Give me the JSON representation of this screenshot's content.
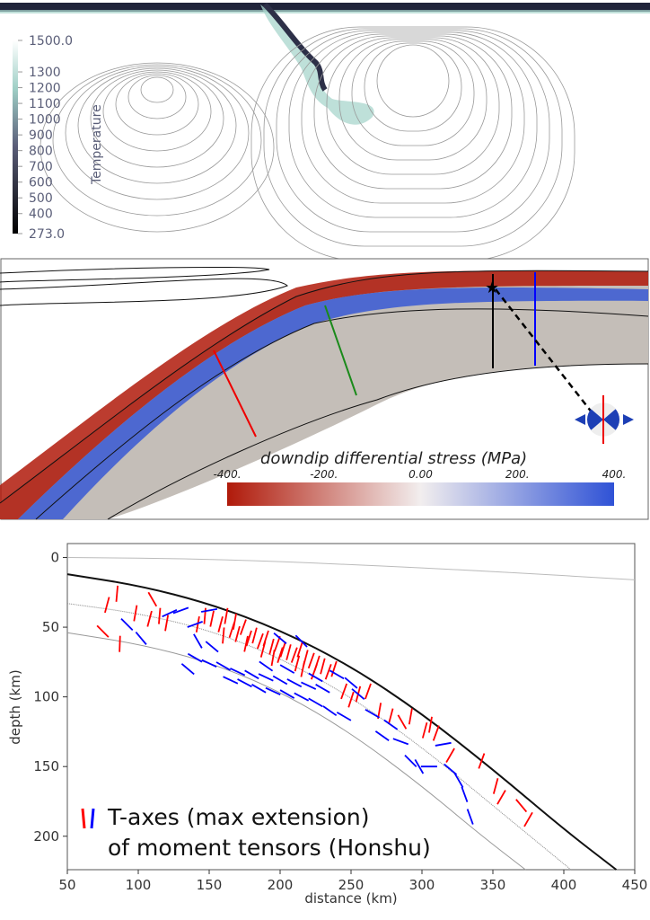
{
  "panel_temperature": {
    "colorbar_title": "Temperature",
    "colorbar_ticks": [
      "1500.0",
      "1300",
      "1200",
      "1100",
      "1000",
      "900",
      "800",
      "700",
      "600",
      "500",
      "400",
      "273.0"
    ],
    "colorbar_tick_values": [
      1500,
      1300,
      1200,
      1100,
      1000,
      900,
      800,
      700,
      600,
      500,
      400,
      273
    ],
    "colors": {
      "cold": "#000000",
      "mid": "#6f7390",
      "warm": "#a8d5cc",
      "hot": "#ffffff"
    }
  },
  "panel_stress": {
    "colorbar_title": "downdip differential stress (MPa)",
    "colorbar_ticks": [
      "-400.",
      "-200.",
      "0.00",
      "200.",
      "400."
    ],
    "colors": {
      "compression": "#b01a0a",
      "neutral": "#eeeeee",
      "extension": "#2f52d6",
      "background": "#c4beb8"
    }
  },
  "chart_data": {
    "type": "scatter",
    "xlabel": "distance (km)",
    "ylabel": "depth (km)",
    "xlim": [
      50,
      450
    ],
    "ylim": [
      224,
      -10
    ],
    "y_inverted": true,
    "xticks": [
      "50",
      "100",
      "150",
      "200",
      "250",
      "300",
      "350",
      "400",
      "450"
    ],
    "xtick_values": [
      50,
      100,
      150,
      200,
      250,
      300,
      350,
      400,
      450
    ],
    "yticks": [
      "0",
      "50",
      "100",
      "150",
      "200"
    ],
    "ytick_values": [
      0,
      50,
      100,
      150,
      200
    ],
    "grid": false,
    "legend_position": "bottom-left",
    "legend_lines": [
      "T-axes (max extension)",
      "of moment tensors (Honshu)"
    ],
    "curves": [
      {
        "style": "surface",
        "color": "#bbbbbb",
        "points": [
          [
            50,
            0
          ],
          [
            150,
            1
          ],
          [
            250,
            5
          ],
          [
            350,
            10
          ],
          [
            450,
            16
          ]
        ]
      },
      {
        "style": "slab-top",
        "color": "#111111",
        "points": [
          [
            50,
            12
          ],
          [
            100,
            20
          ],
          [
            150,
            33
          ],
          [
            200,
            52
          ],
          [
            250,
            78
          ],
          [
            300,
            112
          ],
          [
            350,
            152
          ],
          [
            400,
            195
          ],
          [
            437,
            224
          ]
        ]
      },
      {
        "style": "dotted",
        "color": "#888888",
        "points": [
          [
            50,
            33
          ],
          [
            100,
            40
          ],
          [
            150,
            52
          ],
          [
            200,
            72
          ],
          [
            250,
            100
          ],
          [
            300,
            136
          ],
          [
            350,
            178
          ],
          [
            405,
            224
          ]
        ]
      },
      {
        "style": "lower",
        "color": "#999999",
        "points": [
          [
            50,
            54
          ],
          [
            100,
            62
          ],
          [
            150,
            75
          ],
          [
            200,
            96
          ],
          [
            250,
            126
          ],
          [
            300,
            164
          ],
          [
            340,
            198
          ],
          [
            373,
            224
          ]
        ]
      }
    ],
    "series": [
      {
        "color": "#ff0000",
        "segments": [
          [
            78,
            34,
            75
          ],
          [
            85,
            26,
            85
          ],
          [
            87,
            62,
            88
          ],
          [
            75,
            53,
            -45
          ],
          [
            98,
            40,
            80
          ],
          [
            108,
            44,
            75
          ],
          [
            115,
            42,
            85
          ],
          [
            120,
            47,
            80
          ],
          [
            110,
            30,
            -60
          ],
          [
            142,
            48,
            80
          ],
          [
            147,
            42,
            85
          ],
          [
            152,
            44,
            78
          ],
          [
            158,
            48,
            75
          ],
          [
            162,
            42,
            80
          ],
          [
            166,
            52,
            72
          ],
          [
            170,
            55,
            75
          ],
          [
            174,
            50,
            70
          ],
          [
            178,
            58,
            72
          ],
          [
            182,
            56,
            75
          ],
          [
            186,
            60,
            70
          ],
          [
            190,
            58,
            72
          ],
          [
            194,
            64,
            75
          ],
          [
            198,
            62,
            70
          ],
          [
            202,
            66,
            72
          ],
          [
            206,
            68,
            75
          ],
          [
            210,
            70,
            70
          ],
          [
            214,
            66,
            72
          ],
          [
            218,
            72,
            75
          ],
          [
            222,
            74,
            70
          ],
          [
            226,
            76,
            72
          ],
          [
            230,
            78,
            75
          ],
          [
            234,
            82,
            70
          ],
          [
            238,
            80,
            72
          ],
          [
            176,
            62,
            78
          ],
          [
            188,
            66,
            75
          ],
          [
            200,
            70,
            72
          ],
          [
            212,
            76,
            75
          ],
          [
            224,
            82,
            70
          ],
          [
            245,
            96,
            70
          ],
          [
            250,
            102,
            72
          ],
          [
            255,
            98,
            75
          ],
          [
            262,
            96,
            70
          ],
          [
            270,
            110,
            80
          ],
          [
            278,
            114,
            75
          ],
          [
            286,
            118,
            -60
          ],
          [
            292,
            114,
            80
          ],
          [
            302,
            124,
            75
          ],
          [
            306,
            120,
            80
          ],
          [
            310,
            126,
            70
          ],
          [
            320,
            142,
            60
          ],
          [
            342,
            146,
            70
          ],
          [
            352,
            164,
            75
          ],
          [
            356,
            172,
            60
          ],
          [
            370,
            178,
            -50
          ],
          [
            375,
            188,
            60
          ],
          [
            168,
            46,
            80
          ],
          [
            160,
            56,
            85
          ],
          [
            195,
            72,
            80
          ],
          [
            216,
            80,
            78
          ]
        ]
      },
      {
        "color": "#0000ff",
        "segments": [
          [
            92,
            48,
            -45
          ],
          [
            102,
            58,
            -50
          ],
          [
            122,
            40,
            25
          ],
          [
            130,
            38,
            20
          ],
          [
            140,
            48,
            20
          ],
          [
            142,
            60,
            -60
          ],
          [
            150,
            38,
            10
          ],
          [
            152,
            64,
            -40
          ],
          [
            140,
            72,
            -30
          ],
          [
            150,
            76,
            -25
          ],
          [
            160,
            78,
            -30
          ],
          [
            170,
            82,
            -25
          ],
          [
            180,
            84,
            -30
          ],
          [
            190,
            86,
            -25
          ],
          [
            200,
            88,
            -30
          ],
          [
            210,
            90,
            -28
          ],
          [
            220,
            92,
            -25
          ],
          [
            230,
            94,
            -30
          ],
          [
            165,
            88,
            -25
          ],
          [
            175,
            90,
            -28
          ],
          [
            185,
            94,
            -30
          ],
          [
            195,
            96,
            -25
          ],
          [
            205,
            98,
            -30
          ],
          [
            215,
            100,
            -28
          ],
          [
            225,
            104,
            -30
          ],
          [
            235,
            110,
            -35
          ],
          [
            245,
            114,
            -30
          ],
          [
            190,
            78,
            -35
          ],
          [
            205,
            80,
            -30
          ],
          [
            225,
            86,
            -30
          ],
          [
            135,
            80,
            -40
          ],
          [
            200,
            58,
            -40
          ],
          [
            215,
            60,
            -45
          ],
          [
            255,
            98,
            -40
          ],
          [
            265,
            112,
            -30
          ],
          [
            272,
            128,
            -35
          ],
          [
            285,
            132,
            -20
          ],
          [
            298,
            150,
            -60
          ],
          [
            305,
            150,
            0
          ],
          [
            320,
            152,
            -40
          ],
          [
            330,
            170,
            -70
          ],
          [
            334,
            186,
            -70
          ],
          [
            315,
            134,
            10
          ],
          [
            240,
            84,
            -30
          ],
          [
            250,
            90,
            -40
          ],
          [
            278,
            120,
            -35
          ],
          [
            292,
            146,
            -45
          ],
          [
            326,
            160,
            -60
          ]
        ]
      }
    ]
  }
}
